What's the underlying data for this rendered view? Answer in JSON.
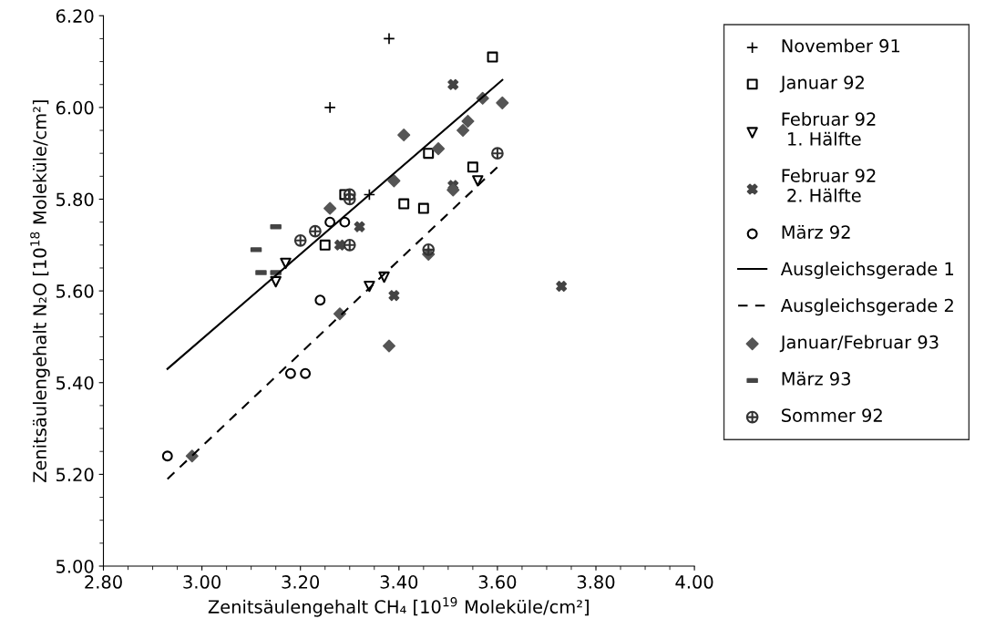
{
  "chart_data": {
    "type": "scatter",
    "xlabel": "Zenitsäulengehalt CH₄ [10$^{19}$ Moleküle/cm²]",
    "ylabel": "Zenitsäulengehalt N₂O [10$^{18}$ Moleküle/cm²]",
    "xlim": [
      2.8,
      4.0
    ],
    "xticks": [
      {
        "value": 2.8,
        "label": "2.80"
      },
      {
        "value": 3.0,
        "label": "3.00"
      },
      {
        "value": 3.2,
        "label": "3.20"
      },
      {
        "value": 3.4,
        "label": "3.40"
      },
      {
        "value": 3.6,
        "label": "3.60"
      },
      {
        "value": 3.8,
        "label": "3.80"
      },
      {
        "value": 4.0,
        "label": "4.00"
      }
    ],
    "ylim": [
      5.0,
      6.2
    ],
    "yticks": [
      {
        "value": 5.0,
        "label": "5.00"
      },
      {
        "value": 5.2,
        "label": "5.20"
      },
      {
        "value": 5.4,
        "label": "5.40"
      },
      {
        "value": 5.6,
        "label": "5.60"
      },
      {
        "value": 5.8,
        "label": "5.80"
      },
      {
        "value": 6.0,
        "label": "6.00"
      },
      {
        "value": 6.2,
        "label": "6.20"
      }
    ],
    "grid": false,
    "legend": "right",
    "series": [
      {
        "name": "November 91",
        "color": "#000000",
        "marker": "cross",
        "x": [
          3.26,
          3.38,
          3.34
        ],
        "values": [
          6.0,
          6.15,
          5.81
        ]
      },
      {
        "name": "Januar 92",
        "color": "#000000",
        "marker": "square",
        "x": [
          3.59,
          3.46,
          3.55,
          3.45,
          3.25,
          3.29,
          3.41
        ],
        "values": [
          6.11,
          5.9,
          5.87,
          5.78,
          5.7,
          5.81,
          5.79
        ]
      },
      {
        "name": "Februar 92\n 1. Hälfte",
        "color": "#000000",
        "marker": "triangle_down",
        "x": [
          3.15,
          3.17,
          3.34,
          3.37,
          3.56
        ],
        "values": [
          5.62,
          5.66,
          5.61,
          5.63,
          5.84
        ]
      },
      {
        "name": "Februar 92\n 2. Hälfte",
        "color": "#444444",
        "marker": "x",
        "x": [
          3.51,
          3.32,
          3.28,
          3.51,
          3.39,
          3.73
        ],
        "values": [
          6.05,
          5.74,
          5.7,
          5.83,
          5.59,
          5.61
        ]
      },
      {
        "name": "März 92",
        "color": "#000000",
        "marker": "circle",
        "x": [
          2.93,
          3.18,
          3.21,
          3.24,
          3.26,
          3.29
        ],
        "values": [
          5.24,
          5.42,
          5.42,
          5.58,
          5.75,
          5.75
        ]
      },
      {
        "name": "Ausgleichsgerade 1",
        "type": "line",
        "line_style": "solid",
        "color": "#000000",
        "x": [
          2.93,
          3.61
        ],
        "values": [
          5.43,
          6.06
        ]
      },
      {
        "name": "Ausgleichsgerade 2",
        "type": "line",
        "line_style": "dashed",
        "color": "#000000",
        "x": [
          2.93,
          3.6
        ],
        "values": [
          5.19,
          5.87
        ]
      },
      {
        "name": "Januar/Februar 93",
        "color": "#555555",
        "marker": "diamond",
        "x": [
          2.98,
          3.28,
          3.38,
          3.39,
          3.41,
          3.46,
          3.48,
          3.53,
          3.54,
          3.57,
          3.61,
          3.26,
          3.51
        ],
        "values": [
          5.24,
          5.55,
          5.48,
          5.84,
          5.94,
          5.68,
          5.91,
          5.95,
          5.97,
          6.02,
          6.01,
          5.78,
          5.82
        ]
      },
      {
        "name": "März 93",
        "color": "#444444",
        "x": [
          3.11,
          3.12,
          3.15,
          3.15
        ],
        "values": [
          5.69,
          5.64,
          5.74,
          5.64
        ]
      },
      {
        "name": "Sommer 92",
        "color": "#333333",
        "x": [
          3.2,
          3.23,
          3.3,
          3.3,
          3.3,
          3.6,
          3.46
        ],
        "values": [
          5.71,
          5.73,
          5.7,
          5.81,
          5.8,
          5.9,
          5.69
        ]
      }
    ]
  }
}
